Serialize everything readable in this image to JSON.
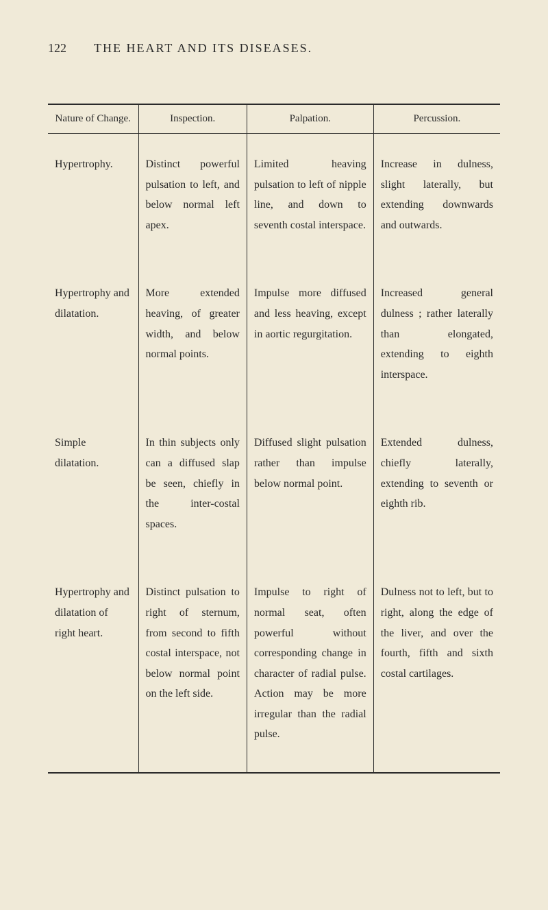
{
  "header": {
    "page_number": "122",
    "title": "THE HEART AND ITS DISEASES."
  },
  "table": {
    "columns": [
      "Nature of Change.",
      "Inspection.",
      "Palpation.",
      "Percussion."
    ],
    "rows": [
      {
        "nature": "Hypertrophy.",
        "inspection": "Distinct powerful pulsation to left, and below normal left apex.",
        "palpation": "Limited heaving pulsation to left of nipple line, and down to seventh costal interspace.",
        "percussion": "Increase in dulness, slight laterally, but extending downwards and outwards."
      },
      {
        "nature": "Hypertrophy and dilatation.",
        "inspection": "More extended heaving, of greater width, and below normal points.",
        "palpation": "Impulse more diffused and less heaving, except in aortic regurgitation.",
        "percussion": "Increased general dulness ; rather laterally than elongated, extending to eighth interspace."
      },
      {
        "nature": "Simple dilatation.",
        "inspection": "In thin subjects only can a diffused slap be seen, chiefly in the inter-costal spaces.",
        "palpation": "Diffused slight pulsation rather than impulse below normal point.",
        "percussion": "Extended dulness, chiefly laterally, extending to seventh or eighth rib."
      },
      {
        "nature": "Hypertrophy and dilatation of right heart.",
        "inspection": "Distinct pulsation to right of sternum, from second to fifth costal interspace, not below normal point on the left side.",
        "palpation": "Impulse to right of normal seat, often powerful without corresponding change in character of radial pulse. Action may be more irregular than the radial pulse.",
        "percussion": "Dulness not to left, but to right, along the edge of the liver, and over the fourth, fifth and sixth costal cartilages."
      }
    ]
  },
  "styling": {
    "background_color": "#f0ead8",
    "text_color": "#2a2a2a",
    "border_color": "#2a2a2a",
    "header_fontsize": 18,
    "table_header_fontsize": 15,
    "table_body_fontsize": 16,
    "line_height": 1.85
  }
}
